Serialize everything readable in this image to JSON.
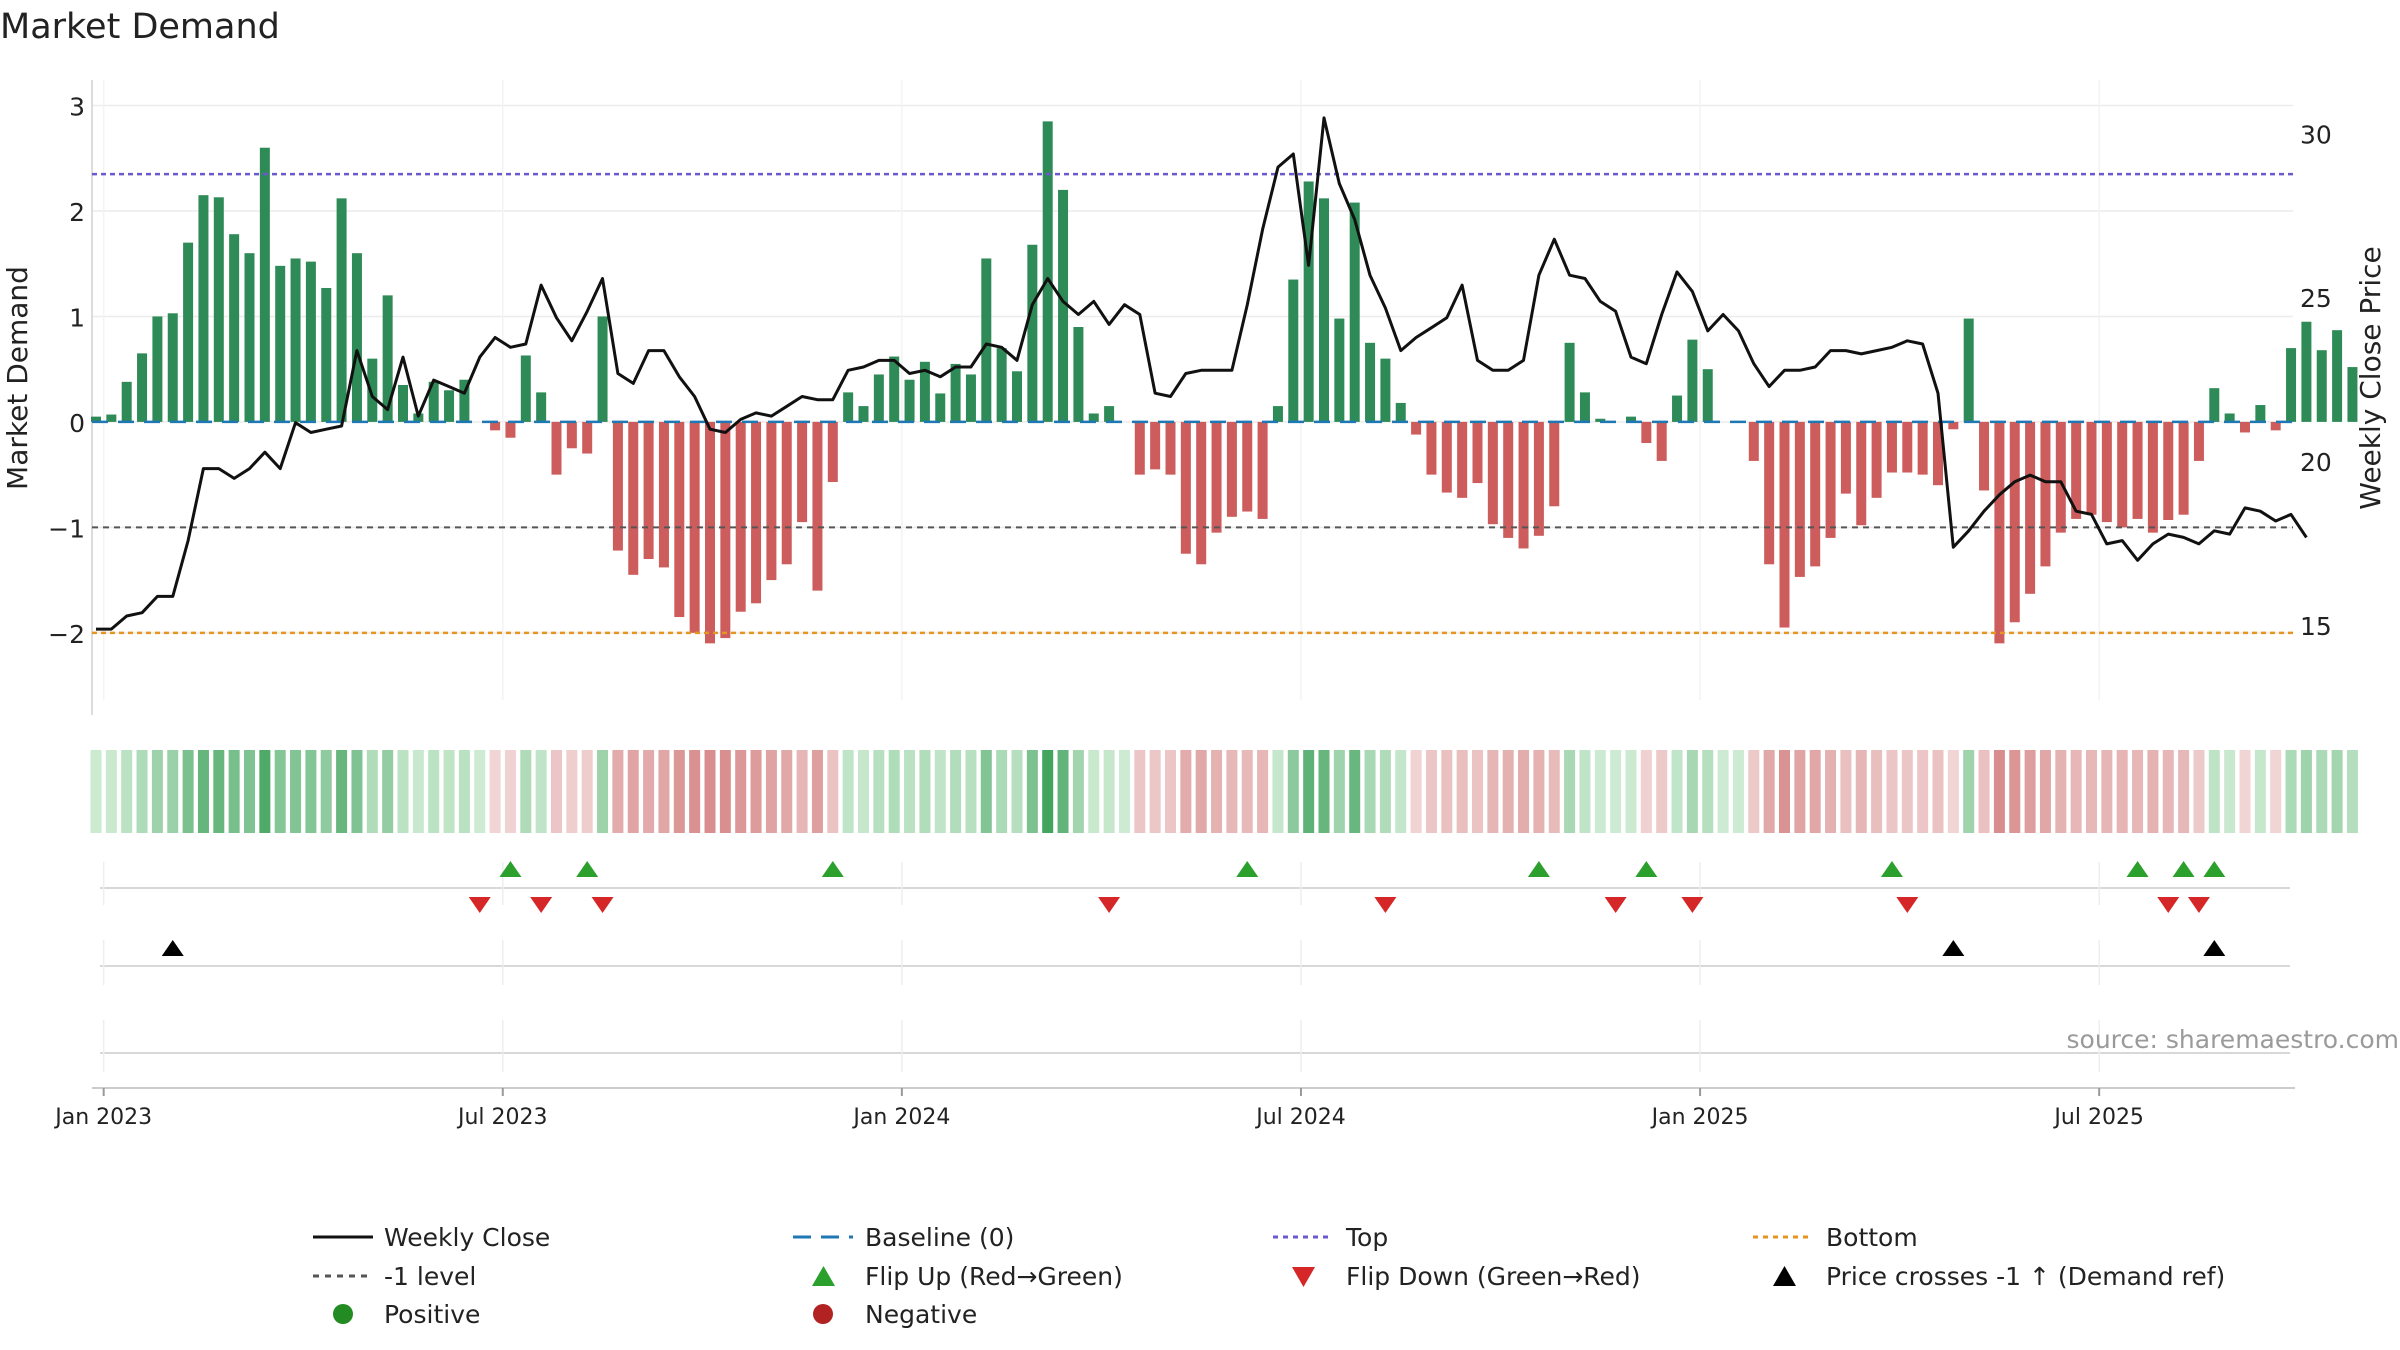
{
  "chart_data": {
    "type": "bar",
    "title": "Market Demand",
    "ylabel_left": "Market Demand",
    "ylabel_right": "Weekly Close Price",
    "ylim_left": [
      -2.4,
      3.1
    ],
    "ylim_right": [
      13.5,
      31.2
    ],
    "left_ticks": [
      3,
      2,
      1,
      0,
      -1,
      -2
    ],
    "left_tick_labels": [
      "3",
      "2",
      "1",
      "0",
      "−1",
      "−2"
    ],
    "right_ticks": [
      30,
      25,
      20,
      15
    ],
    "right_tick_labels": [
      "30",
      "25",
      "20",
      "15"
    ],
    "x_tick_labels": [
      "Jan 2023",
      "Jul 2023",
      "Jan 2024",
      "Jul 2024",
      "Jan 2025",
      "Jul 2025"
    ],
    "x_tick_weeks": [
      0.5,
      26.5,
      52.5,
      78.5,
      104.5,
      130.5
    ],
    "reference_lines": {
      "top": 2.35,
      "bottom": -2.0,
      "minus_one": -1.0,
      "baseline": 0
    },
    "demand": [
      0.05,
      0.07,
      0.38,
      0.65,
      1.0,
      1.03,
      1.7,
      2.15,
      2.13,
      1.78,
      1.6,
      2.6,
      1.48,
      1.55,
      1.52,
      1.27,
      2.12,
      1.6,
      0.6,
      1.2,
      0.35,
      0.08,
      0.38,
      0.3,
      0.4,
      0.0,
      -0.08,
      -0.15,
      0.63,
      0.28,
      -0.5,
      -0.25,
      -0.3,
      1.0,
      -1.22,
      -1.45,
      -1.3,
      -1.38,
      -1.85,
      -2.0,
      -2.1,
      -2.05,
      -1.8,
      -1.72,
      -1.5,
      -1.35,
      -0.95,
      -1.6,
      -0.57,
      0.28,
      0.15,
      0.45,
      0.62,
      0.4,
      0.57,
      0.27,
      0.55,
      0.45,
      1.55,
      0.7,
      0.48,
      1.68,
      2.85,
      2.2,
      0.9,
      0.08,
      0.15,
      0.0,
      -0.5,
      -0.45,
      -0.5,
      -1.25,
      -1.35,
      -1.05,
      -0.9,
      -0.85,
      -0.92,
      0.15,
      1.35,
      2.28,
      2.12,
      0.98,
      2.08,
      0.75,
      0.6,
      0.18,
      -0.12,
      -0.5,
      -0.67,
      -0.72,
      -0.58,
      -0.97,
      -1.1,
      -1.2,
      -1.08,
      -0.8,
      0.75,
      0.28,
      0.03,
      0.0,
      0.05,
      -0.2,
      -0.37,
      0.25,
      0.78,
      0.5,
      0.0,
      0.0,
      -0.37,
      -1.35,
      -1.95,
      -1.47,
      -1.37,
      -1.1,
      -0.68,
      -0.98,
      -0.72,
      -0.48,
      -0.48,
      -0.5,
      -0.6,
      -0.07,
      0.98,
      -0.65,
      -2.1,
      -1.9,
      -1.63,
      -1.37,
      -1.05,
      -0.92,
      -0.88,
      -0.95,
      -1.0,
      -0.92,
      -1.05,
      -0.93,
      -0.88,
      -0.37,
      0.32,
      0.08,
      -0.1,
      0.16,
      -0.08,
      0.7,
      0.95,
      0.68,
      0.87,
      0.52
    ],
    "close": [
      14.9,
      14.9,
      15.3,
      15.4,
      15.9,
      15.9,
      17.6,
      19.8,
      19.8,
      19.5,
      19.8,
      20.3,
      19.8,
      21.2,
      20.9,
      21.0,
      21.1,
      23.4,
      22.0,
      21.6,
      23.2,
      21.4,
      22.5,
      22.3,
      22.1,
      23.2,
      23.8,
      23.5,
      23.6,
      25.4,
      24.4,
      23.7,
      24.6,
      25.6,
      22.7,
      22.4,
      23.4,
      23.4,
      22.6,
      22.0,
      21.0,
      20.9,
      21.3,
      21.5,
      21.4,
      21.7,
      22.0,
      21.9,
      21.9,
      22.8,
      22.9,
      23.1,
      23.1,
      22.7,
      22.8,
      22.6,
      22.9,
      22.9,
      23.6,
      23.5,
      23.1,
      24.8,
      25.6,
      24.9,
      24.5,
      24.9,
      24.2,
      24.8,
      24.5,
      22.1,
      22.0,
      22.7,
      22.8,
      22.8,
      22.8,
      24.8,
      27.1,
      29.0,
      29.4,
      26.0,
      30.5,
      28.5,
      27.4,
      25.7,
      24.7,
      23.4,
      23.8,
      24.1,
      24.4,
      25.4,
      23.1,
      22.8,
      22.8,
      23.1,
      25.7,
      26.8,
      25.7,
      25.6,
      24.9,
      24.6,
      23.2,
      23.0,
      24.5,
      25.8,
      25.2,
      24.0,
      24.5,
      24.0,
      23.0,
      22.3,
      22.8,
      22.8,
      22.9,
      23.4,
      23.4,
      23.3,
      23.4,
      23.5,
      23.7,
      23.6,
      22.1,
      17.4,
      17.9,
      18.5,
      19.0,
      19.4,
      19.6,
      19.4,
      19.4,
      18.5,
      18.4,
      17.5,
      17.6,
      17.0,
      17.5,
      17.8,
      17.7,
      17.5,
      17.9,
      17.8,
      18.6,
      18.5,
      18.2,
      18.4,
      17.7
    ],
    "flip_up_weeks": [
      27,
      32,
      48,
      75,
      94,
      101,
      117,
      133,
      136,
      138
    ],
    "flip_down_weeks": [
      25,
      29,
      33,
      66,
      84,
      99,
      104,
      118,
      135,
      137
    ],
    "price_cross_weeks": [
      5,
      121,
      138
    ],
    "legend": {
      "weekly_close": "Weekly Close",
      "baseline": "Baseline (0)",
      "top": "Top",
      "bottom": "Bottom",
      "minus_one": "-1 level",
      "flip_up": "Flip Up (Red→Green)",
      "flip_down": "Flip Down (Green→Red)",
      "price_cross": "Price crosses -1 ↑ (Demand ref)",
      "positive": "Positive",
      "negative": "Negative"
    },
    "colors": {
      "positive": "#2e8b57",
      "negative": "#cd5c5c",
      "close": "#111111",
      "baseline": "#1f77b4",
      "top": "#6a5acd",
      "bottom": "#e69520",
      "minus_one": "#555555",
      "flip_up": "#2ca02c",
      "flip_down": "#d62728",
      "price_cross": "#000000",
      "positive_dot": "#228b22",
      "negative_dot": "#b22222"
    }
  },
  "watermark": "source: sharemaestro.com"
}
